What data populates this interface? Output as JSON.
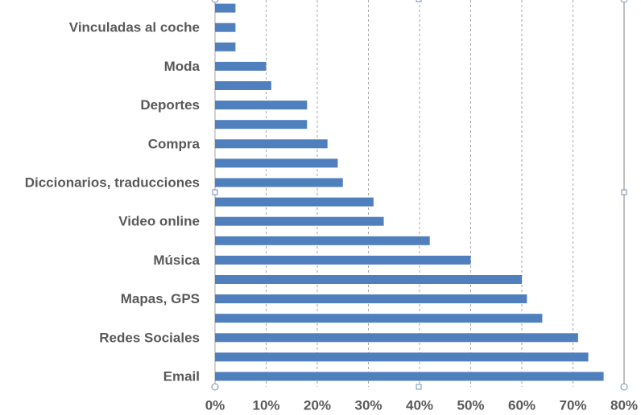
{
  "chart_data": {
    "type": "bar",
    "orientation": "horizontal",
    "categories": [
      "Email",
      null,
      "Redes Sociales",
      null,
      "Mapas, GPS",
      null,
      "Música",
      null,
      "Video online",
      null,
      "Diccionarios, traducciones",
      null,
      "Compra",
      null,
      "Deportes",
      null,
      "Moda",
      null,
      "Vinculadas al coche",
      null
    ],
    "values": [
      76,
      73,
      71,
      64,
      61,
      60,
      50,
      42,
      33,
      31,
      25,
      24,
      22,
      18,
      18,
      11,
      10,
      4,
      4,
      4
    ],
    "color": "#4f7fbc",
    "xlim": [
      0,
      80
    ],
    "xticks": [
      {
        "value": 0,
        "label": "0%"
      },
      {
        "value": 10,
        "label": "10%"
      },
      {
        "value": 20,
        "label": "20%"
      },
      {
        "value": 30,
        "label": "30%"
      },
      {
        "value": 40,
        "label": "40%"
      },
      {
        "value": 50,
        "label": "50%"
      },
      {
        "value": 60,
        "label": "60%"
      },
      {
        "value": 70,
        "label": "70%"
      },
      {
        "value": 80,
        "label": "80%"
      }
    ],
    "grid": true
  }
}
